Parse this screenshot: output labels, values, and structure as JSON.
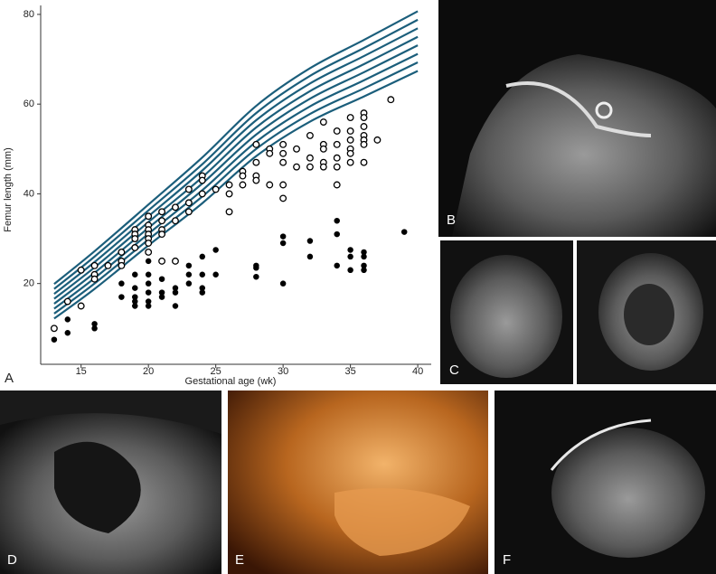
{
  "chart_data": {
    "type": "scatter",
    "xlabel": "Gestational age (wk)",
    "ylabel": "Femur length (mm)",
    "xlim": [
      12,
      41
    ],
    "ylim": [
      2,
      82
    ],
    "xticks": [
      15,
      20,
      25,
      30,
      35,
      40
    ],
    "yticks": [
      20,
      40,
      60,
      80
    ],
    "series": [
      {
        "style": "line",
        "color": "#1b5e7b",
        "x": [
          13,
          16,
          20,
          24,
          28,
          32,
          36,
          40
        ],
        "values": [
          12.2,
          18.8,
          28.5,
          37.9,
          48.4,
          56.1,
          61.7,
          67.4
        ]
      },
      {
        "style": "line",
        "color": "#1b5e7b",
        "x": [
          13,
          16,
          20,
          24,
          28,
          32,
          36,
          40
        ],
        "values": [
          13.3,
          20.0,
          29.8,
          39.4,
          50.0,
          57.8,
          63.5,
          69.3
        ]
      },
      {
        "style": "line",
        "color": "#1b5e7b",
        "x": [
          13,
          16,
          20,
          24,
          28,
          32,
          36,
          40
        ],
        "values": [
          14.4,
          21.2,
          31.1,
          40.8,
          51.6,
          59.5,
          65.3,
          71.2
        ]
      },
      {
        "style": "line",
        "color": "#1b5e7b",
        "x": [
          13,
          16,
          20,
          24,
          28,
          32,
          36,
          40
        ],
        "values": [
          15.5,
          22.4,
          32.4,
          42.3,
          53.2,
          61.2,
          67.1,
          73.1
        ]
      },
      {
        "style": "line",
        "color": "#1b5e7b",
        "x": [
          13,
          16,
          20,
          24,
          28,
          32,
          36,
          40
        ],
        "values": [
          16.6,
          23.6,
          33.7,
          43.7,
          54.8,
          62.9,
          68.9,
          75.0
        ]
      },
      {
        "style": "line",
        "color": "#1b5e7b",
        "x": [
          13,
          16,
          20,
          24,
          28,
          32,
          36,
          40
        ],
        "values": [
          17.7,
          24.8,
          35.0,
          45.2,
          56.4,
          64.6,
          70.7,
          76.9
        ]
      },
      {
        "style": "line",
        "color": "#1b5e7b",
        "x": [
          13,
          16,
          20,
          24,
          28,
          32,
          36,
          40
        ],
        "values": [
          18.8,
          26.0,
          36.3,
          46.6,
          58.0,
          66.3,
          72.5,
          78.8
        ]
      },
      {
        "style": "line",
        "color": "#1b5e7b",
        "x": [
          13,
          16,
          20,
          24,
          28,
          32,
          36,
          40
        ],
        "values": [
          19.9,
          27.2,
          37.6,
          48.1,
          59.6,
          68.0,
          74.3,
          80.7
        ]
      },
      {
        "style": "open",
        "color": "#000000",
        "x": [
          13,
          14,
          15,
          15,
          16,
          16,
          16,
          17,
          18,
          18,
          18,
          19,
          19,
          19,
          19,
          20,
          20,
          20,
          20,
          20,
          20,
          20,
          21,
          21,
          21,
          21,
          21,
          22,
          22,
          22,
          23,
          23,
          23,
          24,
          24,
          24,
          25,
          26,
          26,
          26,
          27,
          27,
          27,
          28,
          28,
          28,
          28,
          29,
          29,
          29,
          30,
          30,
          30,
          30,
          30,
          31,
          31,
          32,
          32,
          32,
          33,
          33,
          33,
          33,
          33,
          34,
          34,
          34,
          34,
          34,
          35,
          35,
          35,
          35,
          35,
          35,
          36,
          36,
          36,
          36,
          36,
          36,
          36,
          37,
          38
        ],
        "values": [
          10,
          16,
          23,
          15,
          24,
          22,
          21,
          24,
          27,
          25,
          24,
          32,
          31,
          30,
          28,
          35,
          33,
          32,
          31,
          30,
          29,
          27,
          36,
          34,
          32,
          31,
          25,
          37,
          34,
          25,
          41,
          38,
          36,
          44,
          43,
          40,
          41,
          42,
          40,
          36,
          45,
          44,
          42,
          51,
          47,
          44,
          43,
          50,
          49,
          42,
          51,
          49,
          47,
          42,
          39,
          50,
          46,
          53,
          48,
          46,
          56,
          51,
          50,
          47,
          46,
          54,
          51,
          48,
          46,
          42,
          57,
          54,
          52,
          50,
          49,
          47,
          58,
          57,
          55,
          53,
          52,
          51,
          47,
          52,
          61
        ]
      },
      {
        "style": "filled",
        "color": "#000000",
        "x": [
          13,
          14,
          14,
          16,
          16,
          18,
          18,
          19,
          19,
          19,
          19,
          19,
          20,
          20,
          20,
          20,
          20,
          20,
          21,
          21,
          21,
          22,
          22,
          22,
          23,
          23,
          23,
          24,
          24,
          24,
          24,
          25,
          25,
          28,
          28,
          28,
          30,
          30,
          30,
          32,
          32,
          34,
          34,
          34,
          35,
          35,
          35,
          36,
          36,
          36,
          36,
          39
        ],
        "values": [
          7.5,
          12,
          9,
          11,
          10,
          20,
          17,
          22,
          19,
          17,
          16,
          15,
          25,
          22,
          20,
          18,
          16,
          15,
          21,
          18,
          17,
          19,
          18,
          15,
          24,
          22,
          20,
          26,
          22,
          19,
          18,
          27.5,
          22,
          24,
          23.5,
          21.5,
          30.5,
          29,
          20,
          29.5,
          26,
          34,
          31,
          24,
          27.5,
          26,
          23,
          27,
          26,
          24,
          23,
          31.5
        ]
      }
    ]
  },
  "panel_labels": [
    "A",
    "B",
    "C",
    "D",
    "E",
    "F"
  ]
}
